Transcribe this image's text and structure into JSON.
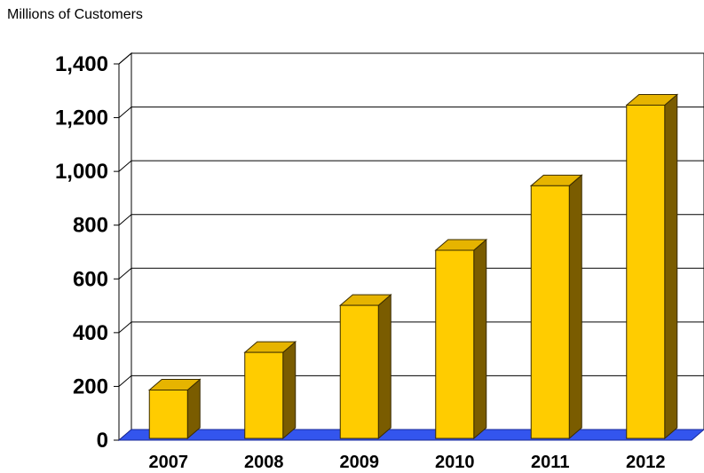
{
  "chart_data": {
    "type": "bar",
    "title": "",
    "ylabel": "Millions of Customers",
    "xlabel": "",
    "categories": [
      "2007",
      "2008",
      "2009",
      "2010",
      "2011",
      "2012"
    ],
    "values": [
      180,
      320,
      495,
      700,
      940,
      1240
    ],
    "ylim": [
      0,
      1400
    ],
    "yticks": [
      0,
      200,
      400,
      600,
      800,
      1000,
      1200,
      1400
    ],
    "ytick_labels": [
      "0",
      "200",
      "400",
      "600",
      "800",
      "1,000",
      "1,200",
      "1,400"
    ],
    "grid": true,
    "legend": "none",
    "bar_style": "3d",
    "colors": {
      "bar_front": "#FFCC00",
      "bar_side": "#7A5C00",
      "bar_top": "#E6B400",
      "floor": "#3355EE",
      "grid": "#000000"
    }
  }
}
